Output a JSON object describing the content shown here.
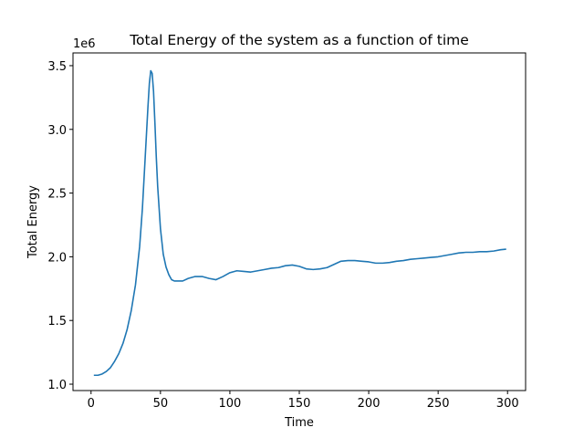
{
  "chart_data": {
    "type": "line",
    "title": "Total Energy of the system as a function of time",
    "xlabel": "Time",
    "ylabel": "Total Energy",
    "y_multiplier_label": "1e6",
    "xlim": [
      -13,
      313
    ],
    "ylim": [
      0.95,
      3.6
    ],
    "xticks": [
      0,
      50,
      100,
      150,
      200,
      250,
      300
    ],
    "yticks": [
      1.0,
      1.5,
      2.0,
      2.5,
      3.0,
      3.5
    ],
    "ytick_labels": [
      "1.0",
      "1.5",
      "2.0",
      "2.5",
      "3.0",
      "3.5"
    ],
    "grid": false,
    "series": [
      {
        "color": "#1f77b4",
        "x": [
          2,
          5,
          8,
          11,
          14,
          17,
          20,
          23,
          26,
          29,
          32,
          35,
          37,
          39,
          41,
          42,
          43,
          44,
          45,
          46,
          47,
          48,
          50,
          52,
          54,
          56,
          58,
          60,
          63,
          66,
          70,
          75,
          80,
          85,
          90,
          95,
          100,
          105,
          110,
          115,
          120,
          125,
          130,
          135,
          140,
          145,
          150,
          155,
          160,
          165,
          170,
          175,
          180,
          185,
          190,
          195,
          200,
          205,
          210,
          215,
          220,
          225,
          230,
          235,
          240,
          245,
          250,
          255,
          260,
          265,
          270,
          275,
          280,
          285,
          290,
          295,
          299
        ],
        "y": [
          1.07,
          1.07,
          1.08,
          1.1,
          1.13,
          1.18,
          1.24,
          1.32,
          1.43,
          1.58,
          1.78,
          2.08,
          2.38,
          2.78,
          3.18,
          3.36,
          3.46,
          3.44,
          3.3,
          3.05,
          2.78,
          2.55,
          2.22,
          2.02,
          1.92,
          1.86,
          1.82,
          1.81,
          1.81,
          1.81,
          1.83,
          1.845,
          1.845,
          1.83,
          1.82,
          1.845,
          1.875,
          1.89,
          1.885,
          1.88,
          1.89,
          1.9,
          1.91,
          1.915,
          1.93,
          1.935,
          1.925,
          1.905,
          1.9,
          1.905,
          1.915,
          1.94,
          1.965,
          1.97,
          1.97,
          1.965,
          1.96,
          1.95,
          1.95,
          1.955,
          1.965,
          1.97,
          1.98,
          1.985,
          1.99,
          1.995,
          2.0,
          2.01,
          2.02,
          2.03,
          2.035,
          2.035,
          2.04,
          2.04,
          2.045,
          2.055,
          2.06
        ]
      }
    ]
  }
}
